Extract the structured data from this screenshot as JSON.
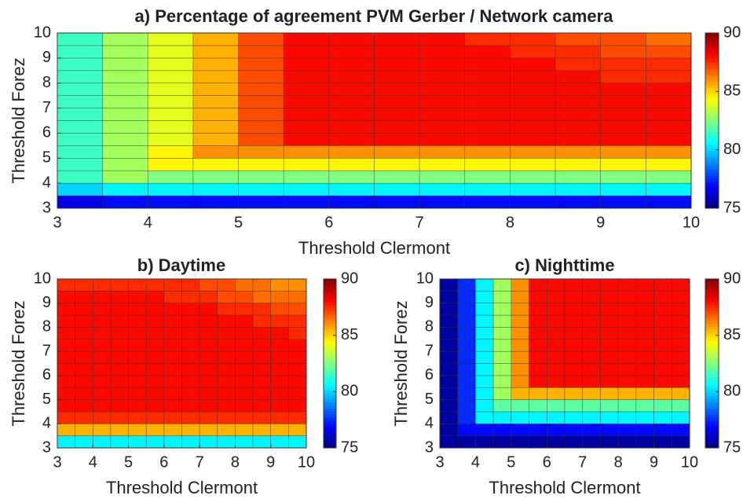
{
  "chart_data": [
    {
      "type": "heatmap",
      "title": "a) Percentage of agreement PVM Gerber / Network camera",
      "xlabel": "Threshold Clermont",
      "ylabel": "Threshold Forez",
      "colormap": "jet",
      "xbins": [
        3,
        3.5,
        4,
        4.5,
        5,
        5.5,
        6,
        6.5,
        7,
        7.5,
        8,
        8.5,
        9,
        9.5,
        10
      ],
      "ybins": [
        3,
        3.5,
        4,
        4.5,
        5,
        5.5,
        6,
        6.5,
        7,
        7.5,
        8,
        8.5,
        9,
        9.5,
        10
      ],
      "xlim": [
        3,
        10
      ],
      "ylim": [
        3,
        10
      ],
      "xticks": [
        3,
        4,
        5,
        6,
        7,
        8,
        9,
        10
      ],
      "yticks": [
        3,
        4,
        5,
        6,
        7,
        8,
        9,
        10
      ],
      "clim": [
        75,
        90
      ],
      "cticks": [
        75,
        80,
        85,
        90
      ],
      "values": [
        [
          76.5,
          77,
          77,
          77,
          77,
          77,
          77,
          77,
          77,
          77,
          77,
          77,
          77,
          77
        ],
        [
          80,
          80.5,
          80.5,
          80.5,
          80.5,
          80.5,
          80.5,
          80.5,
          80.5,
          80.5,
          80.5,
          80.5,
          80.5,
          80.5
        ],
        [
          81.5,
          83,
          82.5,
          82.5,
          82.5,
          82.5,
          82.5,
          82.5,
          82.5,
          82.5,
          82.5,
          82.5,
          82.5,
          82.5
        ],
        [
          81.5,
          83,
          84.5,
          84.5,
          84.5,
          84.5,
          84.5,
          84.5,
          84.5,
          84.5,
          84.5,
          84.5,
          84.5,
          84.5
        ],
        [
          81.5,
          83,
          84.5,
          86,
          86,
          86,
          86,
          86,
          86,
          86,
          86,
          86,
          86,
          86
        ],
        [
          81.5,
          83,
          84,
          85.5,
          87,
          88,
          88,
          88,
          88,
          88,
          88,
          88,
          88,
          88
        ],
        [
          81.5,
          83,
          84,
          85.5,
          87,
          88,
          88,
          88,
          88,
          88,
          88,
          88,
          88,
          88
        ],
        [
          81.5,
          83,
          84,
          85.5,
          87,
          88,
          88,
          88,
          88,
          88,
          88,
          88,
          88,
          88
        ],
        [
          81.5,
          83,
          84,
          85.5,
          87,
          88,
          88,
          88,
          88,
          88,
          88,
          88,
          88,
          88
        ],
        [
          81.5,
          83,
          84,
          85.5,
          87,
          88,
          88,
          88,
          88,
          88,
          88,
          88,
          88,
          88
        ],
        [
          81.5,
          83,
          84,
          85.5,
          87,
          88,
          88,
          88,
          88,
          88,
          88,
          88,
          87.5,
          87.5
        ],
        [
          81.5,
          83,
          84,
          85.5,
          87,
          88,
          88,
          88,
          88,
          88,
          88,
          87.5,
          87.5,
          87.5
        ],
        [
          81.5,
          83,
          84,
          85.5,
          87,
          88,
          88,
          88,
          88,
          88,
          87.5,
          87.5,
          87,
          87
        ],
        [
          81.5,
          83,
          84,
          85.5,
          87,
          88,
          88,
          88,
          88,
          87.5,
          87.5,
          87,
          87,
          86.5
        ]
      ]
    },
    {
      "type": "heatmap",
      "title": "b) Daytime",
      "xlabel": "Threshold Clermont",
      "ylabel": "Threshold Forez",
      "colormap": "jet",
      "xbins": [
        3,
        3.5,
        4,
        4.5,
        5,
        5.5,
        6,
        6.5,
        7,
        7.5,
        8,
        8.5,
        9,
        9.5,
        10
      ],
      "ybins": [
        3,
        3.5,
        4,
        4.5,
        5,
        5.5,
        6,
        6.5,
        7,
        7.5,
        8,
        8.5,
        9,
        9.5,
        10
      ],
      "xlim": [
        3,
        10
      ],
      "ylim": [
        3,
        10
      ],
      "xticks": [
        3,
        4,
        5,
        6,
        7,
        8,
        9,
        10
      ],
      "yticks": [
        3,
        4,
        5,
        6,
        7,
        8,
        9,
        10
      ],
      "clim": [
        75,
        90
      ],
      "cticks": [
        75,
        80,
        85,
        90
      ],
      "values": [
        [
          80.5,
          80.5,
          80.5,
          80.5,
          80.5,
          80.5,
          80.5,
          80.5,
          80.5,
          80.5,
          80.5,
          80.5,
          80.5,
          80.5
        ],
        [
          85.5,
          85.5,
          85.5,
          85.5,
          85.5,
          85.5,
          85.5,
          85.5,
          85.5,
          85.5,
          85.5,
          85.5,
          85.5,
          85.5
        ],
        [
          87.5,
          87.5,
          87.5,
          87.5,
          87.5,
          87.5,
          87.5,
          87.5,
          87.5,
          87.5,
          87.5,
          87.5,
          87.5,
          87.5
        ],
        [
          88,
          88,
          88,
          88,
          88,
          88,
          88,
          88,
          88,
          88,
          88,
          88,
          88,
          88
        ],
        [
          88,
          88,
          88,
          88,
          88,
          88,
          88,
          88,
          88,
          88,
          88,
          88,
          88,
          88
        ],
        [
          88,
          88,
          88,
          88,
          88,
          88,
          88,
          88,
          88,
          88,
          88,
          88,
          88,
          88
        ],
        [
          88,
          88,
          88,
          88,
          88,
          88,
          88,
          88,
          88,
          88,
          88,
          88,
          88,
          88
        ],
        [
          88,
          88,
          88,
          88,
          88,
          88,
          88,
          88,
          88,
          88,
          88,
          88,
          88,
          88
        ],
        [
          88,
          88,
          88,
          88,
          88,
          88,
          88,
          88,
          88,
          88,
          88,
          88,
          88,
          88
        ],
        [
          88,
          88,
          88,
          88,
          88,
          88,
          88,
          88,
          88,
          88,
          88,
          88,
          88,
          87.5
        ],
        [
          88,
          88,
          88,
          88,
          88,
          88,
          88,
          88,
          88,
          88,
          88,
          87.5,
          87.5,
          87.5
        ],
        [
          88,
          88,
          88,
          88,
          88,
          88,
          88,
          88,
          88,
          87.5,
          87.5,
          87.5,
          87,
          87
        ],
        [
          88,
          88,
          88,
          88,
          88,
          88,
          87.5,
          87.5,
          87.5,
          87,
          87,
          86.5,
          86.5,
          86.5
        ],
        [
          87.5,
          87.5,
          87.5,
          87.5,
          87.5,
          87.5,
          87.5,
          87.5,
          87,
          87,
          86.5,
          86.5,
          86,
          86
        ]
      ]
    },
    {
      "type": "heatmap",
      "title": "c) Nighttime",
      "xlabel": "Threshold Clermont",
      "ylabel": "Threshold Forez",
      "colormap": "jet",
      "xbins": [
        3,
        3.5,
        4,
        4.5,
        5,
        5.5,
        6,
        6.5,
        7,
        7.5,
        8,
        8.5,
        9,
        9.5,
        10
      ],
      "ybins": [
        3,
        3.5,
        4,
        4.5,
        5,
        5.5,
        6,
        6.5,
        7,
        7.5,
        8,
        8.5,
        9,
        9.5,
        10
      ],
      "xlim": [
        3,
        10
      ],
      "ylim": [
        3,
        10
      ],
      "xticks": [
        3,
        4,
        5,
        6,
        7,
        8,
        9,
        10
      ],
      "yticks": [
        3,
        4,
        5,
        6,
        7,
        8,
        9,
        10
      ],
      "clim": [
        75,
        90
      ],
      "cticks": [
        75,
        80,
        85,
        90
      ],
      "values": [
        [
          75.5,
          75.5,
          75.5,
          75.5,
          75.5,
          75.5,
          75.5,
          75.5,
          75.5,
          75.5,
          75.5,
          75.5,
          75.5,
          75.5
        ],
        [
          75.5,
          77,
          77,
          77,
          77,
          77,
          77,
          77,
          77,
          77,
          77,
          77,
          77,
          77
        ],
        [
          75.5,
          77.5,
          80.5,
          80.5,
          80.5,
          80.5,
          80.5,
          80.5,
          80.5,
          80.5,
          80.5,
          80.5,
          80.5,
          80.5
        ],
        [
          75.5,
          77.5,
          80.5,
          82,
          82,
          82,
          82,
          82,
          82,
          82,
          82,
          82,
          82,
          82
        ],
        [
          75.5,
          77.5,
          80.5,
          83,
          85.5,
          85.5,
          85.5,
          85.5,
          85.5,
          85.5,
          85.5,
          85.5,
          85.5,
          85.5
        ],
        [
          75.5,
          77.5,
          80.5,
          83,
          86,
          88,
          88,
          88,
          88,
          88,
          88,
          88,
          88,
          88
        ],
        [
          75.5,
          77.5,
          80.5,
          83,
          86,
          88,
          88,
          88,
          88,
          88,
          88,
          88,
          88,
          88
        ],
        [
          75.5,
          77.5,
          80.5,
          83,
          86,
          88,
          88,
          88,
          88,
          88,
          88,
          88,
          88,
          88
        ],
        [
          75.5,
          77.5,
          80.5,
          83,
          86,
          88,
          88,
          88,
          88,
          88,
          88,
          88,
          88,
          88
        ],
        [
          75.5,
          77.5,
          80.5,
          83,
          86,
          88,
          88,
          88,
          88,
          88,
          88,
          88,
          88,
          88
        ],
        [
          75.5,
          77.5,
          80.5,
          83,
          86,
          88,
          88,
          88,
          88,
          88,
          88,
          88,
          88,
          88
        ],
        [
          75.5,
          77.5,
          80.5,
          83,
          86,
          88,
          88,
          88,
          88,
          88,
          88,
          88,
          88,
          88
        ],
        [
          75.5,
          77.5,
          80.5,
          83,
          86,
          88,
          88,
          88,
          88,
          88,
          88,
          88,
          88,
          88
        ],
        [
          75.5,
          77.5,
          80.5,
          83,
          86,
          88,
          88,
          88,
          88,
          88,
          88,
          88,
          88,
          88
        ]
      ]
    }
  ]
}
